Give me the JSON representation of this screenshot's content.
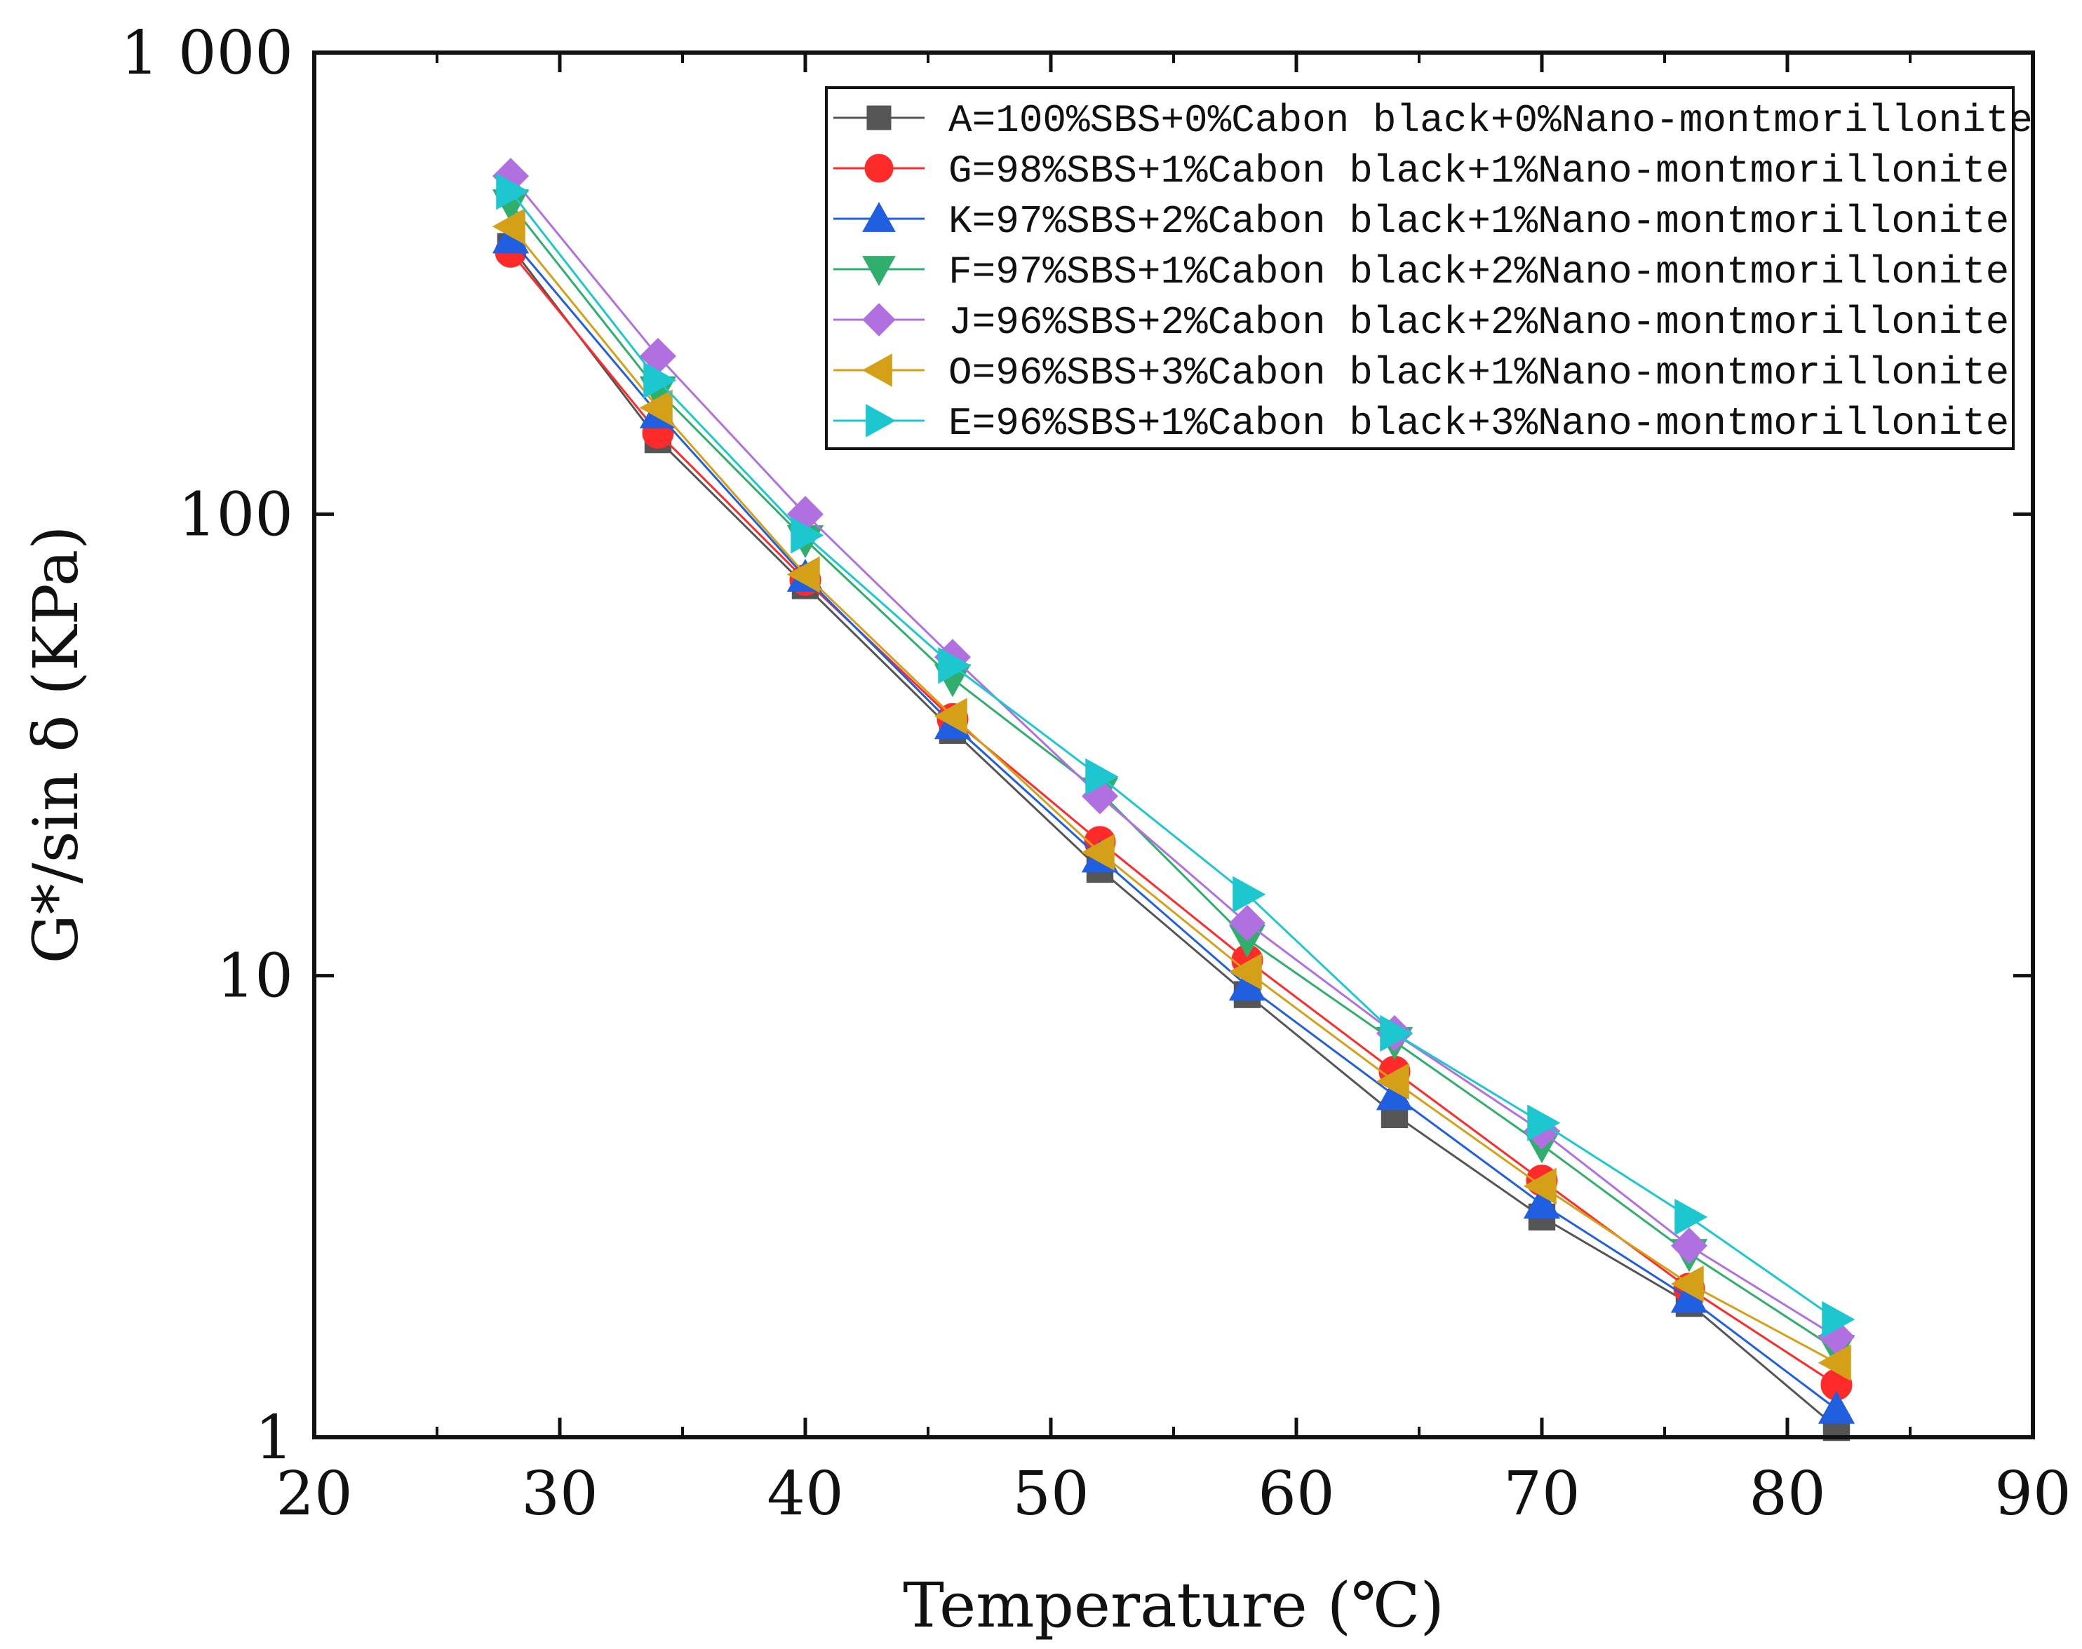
{
  "chart_data": {
    "type": "line",
    "title": "",
    "xlabel": "Temperature (℃)",
    "ylabel": "G*/sin δ (KPa)",
    "xlim": [
      20,
      90
    ],
    "ylim": [
      1,
      1000
    ],
    "yscale": "log",
    "x_ticks": [
      "20",
      "30",
      "40",
      "50",
      "60",
      "70",
      "80",
      "90"
    ],
    "y_ticks": [
      "1",
      "10",
      "100",
      "1 000"
    ],
    "legend_position": "top-right",
    "x": [
      28,
      34,
      40,
      46,
      52,
      58,
      64,
      70,
      76,
      82
    ],
    "series": [
      {
        "name": "A=100%SBS+0%Cabon black+0%Nano-montmorillonite",
        "color": "#555555",
        "marker": "square",
        "values": [
          380,
          145,
          70,
          34,
          17,
          9.1,
          5.0,
          3.0,
          1.95,
          1.05
        ]
      },
      {
        "name": "G=98%SBS+1%Cabon black+1%Nano-montmorillonite",
        "color": "#ff2a2a",
        "marker": "circle",
        "values": [
          370,
          150,
          72,
          36,
          19.5,
          10.8,
          6.2,
          3.6,
          2.1,
          1.3
        ]
      },
      {
        "name": "K=97%SBS+2%Cabon black+1%Nano-montmorillonite",
        "color": "#1f5fe0",
        "marker": "triangle-up",
        "values": [
          395,
          165,
          73,
          35,
          18,
          9.5,
          5.5,
          3.2,
          2.0,
          1.15
        ]
      },
      {
        "name": "F=97%SBS+1%Cabon black+2%Nano-montmorillonite",
        "color": "#2fae6c",
        "marker": "triangle-down",
        "values": [
          470,
          185,
          88,
          44,
          25,
          12,
          7.2,
          4.3,
          2.5,
          1.55
        ]
      },
      {
        "name": "J=96%SBS+2%Cabon black+2%Nano-montmorillonite",
        "color": "#b070e0",
        "marker": "diamond",
        "values": [
          540,
          220,
          100,
          49,
          24.5,
          13,
          7.5,
          4.6,
          2.6,
          1.65
        ]
      },
      {
        "name": "O=96%SBS+3%Cabon black+1%Nano-montmorillonite",
        "color": "#d4a017",
        "marker": "triangle-left",
        "values": [
          420,
          170,
          74,
          36.5,
          18.5,
          10.2,
          5.9,
          3.5,
          2.15,
          1.45
        ]
      },
      {
        "name": "E=96%SBS+1%Cabon black+3%Nano-montmorillonite",
        "color": "#1cc7d0",
        "marker": "triangle-right",
        "values": [
          500,
          195,
          90,
          47,
          27,
          15,
          7.5,
          4.8,
          3.0,
          1.8
        ]
      }
    ]
  }
}
